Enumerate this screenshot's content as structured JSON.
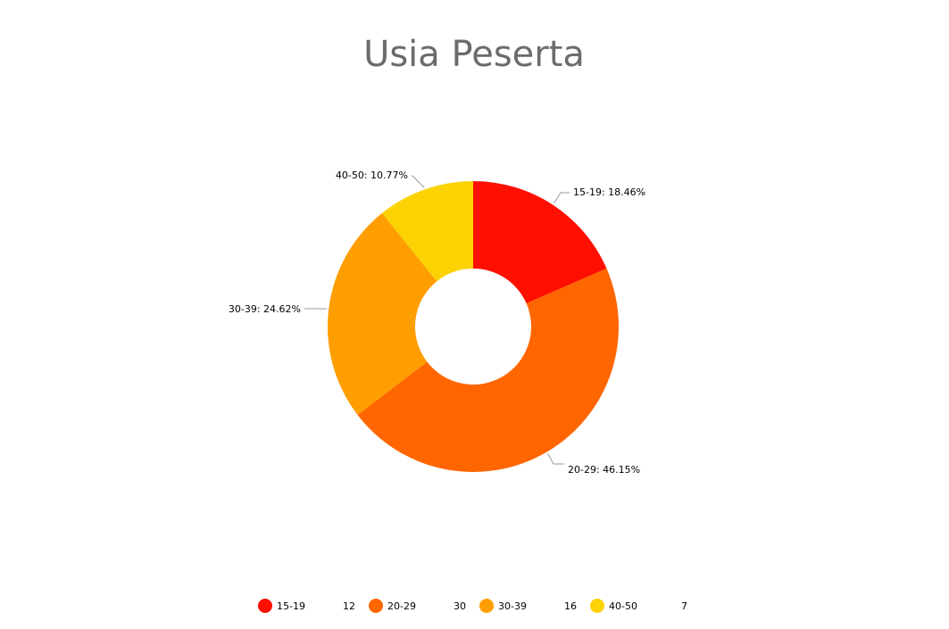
{
  "chart_data": {
    "type": "pie",
    "donut": true,
    "title": "Usia Peserta",
    "legend_position": "bottom",
    "slices": [
      {
        "label": "15-19",
        "value": 12,
        "percent_label": "18.46%",
        "color": "#ff0f00"
      },
      {
        "label": "20-29",
        "value": 30,
        "percent_label": "46.15%",
        "color": "#ff6600"
      },
      {
        "label": "30-39",
        "value": 16,
        "percent_label": "24.62%",
        "color": "#ff9e01"
      },
      {
        "label": "40-50",
        "value": 7,
        "percent_label": "10.77%",
        "color": "#fcd202"
      }
    ]
  }
}
